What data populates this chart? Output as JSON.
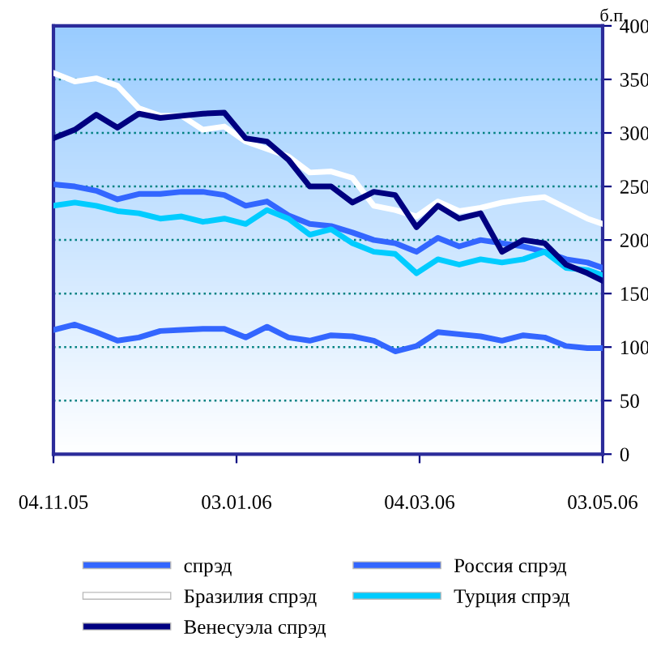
{
  "chart_data": {
    "type": "line",
    "ylabel": "б.п.",
    "x": [
      "2005-11-04",
      "2005-11-11",
      "2005-11-18",
      "2005-11-25",
      "2005-12-02",
      "2005-12-09",
      "2005-12-16",
      "2005-12-23",
      "2005-12-30",
      "2006-01-06",
      "2006-01-13",
      "2006-01-20",
      "2006-01-27",
      "2006-02-03",
      "2006-02-10",
      "2006-02-17",
      "2006-02-24",
      "2006-03-03",
      "2006-03-10",
      "2006-03-17",
      "2006-03-24",
      "2006-03-31",
      "2006-04-07",
      "2006-04-14",
      "2006-04-21",
      "2006-04-28",
      "2006-05-03"
    ],
    "series": [
      {
        "name": "спрэд",
        "color": "#3366ff",
        "values": [
          252,
          250,
          246,
          238,
          243,
          243,
          245,
          245,
          242,
          232,
          236,
          223,
          215,
          213,
          207,
          200,
          197,
          189,
          202,
          194,
          200,
          197,
          194,
          189,
          182,
          179,
          174
        ]
      },
      {
        "name": "Россия спрэд",
        "color": "#3366ff",
        "values": [
          116,
          121,
          114,
          106,
          109,
          115,
          116,
          117,
          117,
          109,
          119,
          109,
          106,
          111,
          110,
          106,
          96,
          101,
          114,
          112,
          110,
          106,
          111,
          109,
          101,
          99,
          99
        ]
      },
      {
        "name": "Бразилия спрэд",
        "color": "#ffffff",
        "values": [
          356,
          348,
          351,
          344,
          323,
          316,
          316,
          303,
          306,
          292,
          285,
          278,
          263,
          264,
          258,
          232,
          228,
          222,
          236,
          227,
          230,
          235,
          238,
          240,
          230,
          220,
          215
        ]
      },
      {
        "name": "Турция спрэд",
        "color": "#00ccff",
        "values": [
          232,
          235,
          232,
          227,
          225,
          220,
          222,
          217,
          220,
          215,
          228,
          220,
          205,
          210,
          197,
          189,
          187,
          169,
          182,
          177,
          182,
          179,
          182,
          189,
          174,
          172,
          167
        ]
      },
      {
        "name": "Венесуэла спрэд",
        "color": "#000080",
        "values": [
          295,
          303,
          317,
          305,
          318,
          314,
          316,
          318,
          319,
          295,
          292,
          275,
          250,
          250,
          235,
          245,
          242,
          212,
          232,
          220,
          225,
          189,
          200,
          197,
          177,
          169,
          162
        ]
      }
    ],
    "xlim": [
      "2005-11-04",
      "2006-05-03"
    ],
    "xticks": [
      {
        "value": "2005-11-04",
        "label": "04.11.05"
      },
      {
        "value": "2006-01-03",
        "label": "03.01.06"
      },
      {
        "value": "2006-03-04",
        "label": "04.03.06"
      },
      {
        "value": "2006-05-03",
        "label": "03.05.06"
      }
    ],
    "ylim": [
      0,
      400
    ],
    "yticks": [
      0,
      50,
      100,
      150,
      200,
      250,
      300,
      350,
      400
    ],
    "grid": "y",
    "legend": "bottom",
    "marker": "none",
    "line_style": "solid"
  }
}
